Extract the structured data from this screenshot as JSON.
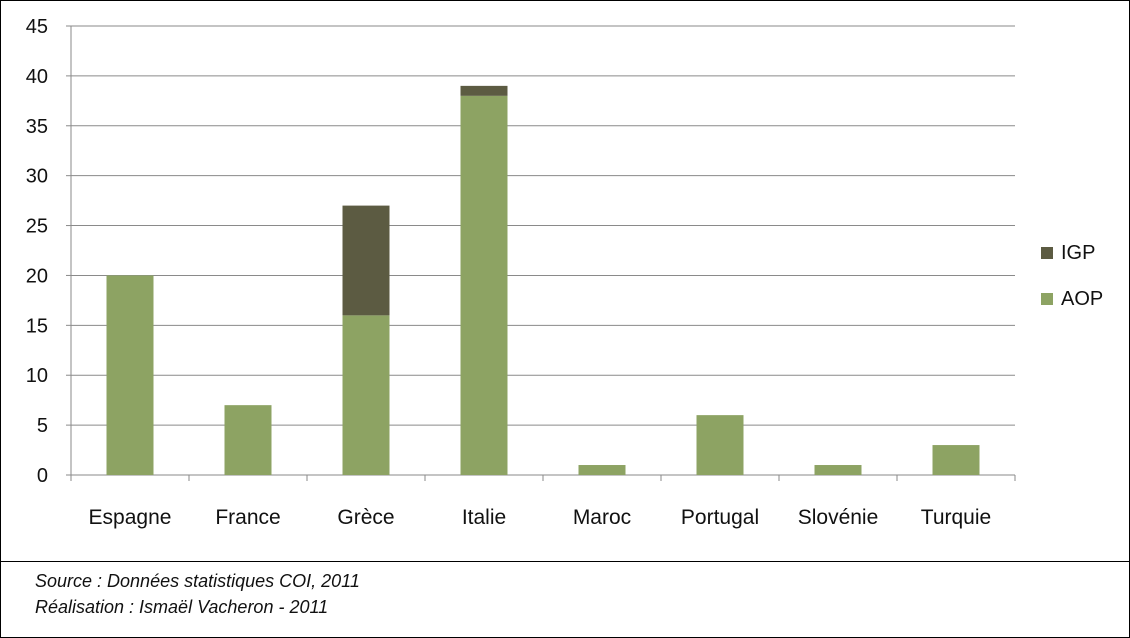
{
  "chart_data": {
    "type": "bar",
    "stacked": true,
    "categories": [
      "Espagne",
      "France",
      "Grèce",
      "Italie",
      "Maroc",
      "Portugal",
      "Slovénie",
      "Turquie"
    ],
    "series": [
      {
        "name": "AOP",
        "color": "#8da363",
        "values": [
          20,
          7,
          16,
          38,
          1,
          6,
          1,
          3
        ]
      },
      {
        "name": "IGP",
        "color": "#5c5b42",
        "values": [
          0,
          0,
          11,
          1,
          0,
          0,
          0,
          0
        ]
      }
    ],
    "ylim": [
      0,
      45
    ],
    "yticks": [
      0,
      5,
      10,
      15,
      20,
      25,
      30,
      35,
      40,
      45
    ],
    "grid": true,
    "legend": {
      "placement": "right",
      "order": [
        "IGP",
        "AOP"
      ]
    }
  },
  "notes": {
    "source": "Source : Données statistiques COI, 2011",
    "realisation": "Réalisation : Ismaël Vacheron - 2011"
  }
}
